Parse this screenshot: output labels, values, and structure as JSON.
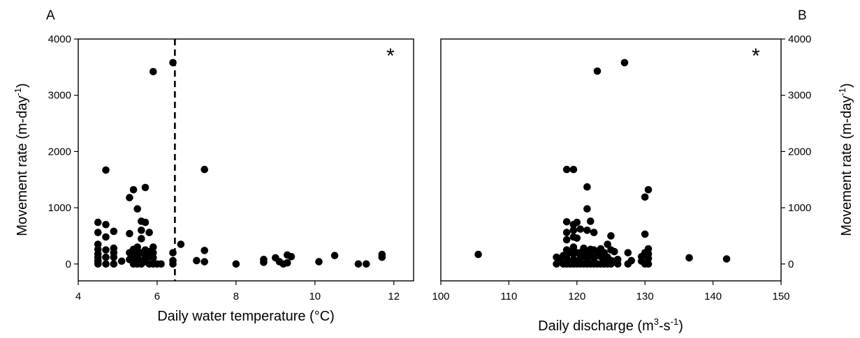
{
  "chart_data": [
    {
      "type": "scatter",
      "panel_label": "A",
      "xlabel": "Daily water temperature (°C)",
      "ylabel": "Movement rate (m-day",
      "ylabel_sup": "-1",
      "ylabel_tail": ")",
      "xlim": [
        4,
        12.5
      ],
      "ylim": [
        -300,
        4000
      ],
      "xticks": [
        4,
        6,
        8,
        10,
        12
      ],
      "yticks": [
        0,
        1000,
        2000,
        3000,
        4000
      ],
      "ytick_side": "left",
      "grid": false,
      "annotation": "*",
      "reference_line": {
        "x": 6.45,
        "style": "dashed"
      },
      "points": [
        [
          4.5,
          0
        ],
        [
          4.5,
          20
        ],
        [
          4.5,
          60
        ],
        [
          4.5,
          120
        ],
        [
          4.5,
          180
        ],
        [
          4.5,
          260
        ],
        [
          4.5,
          350
        ],
        [
          4.5,
          560
        ],
        [
          4.5,
          740
        ],
        [
          4.7,
          0
        ],
        [
          4.7,
          120
        ],
        [
          4.7,
          250
        ],
        [
          4.7,
          480
        ],
        [
          4.7,
          700
        ],
        [
          4.7,
          1670
        ],
        [
          4.9,
          0
        ],
        [
          4.9,
          120
        ],
        [
          4.9,
          200
        ],
        [
          4.9,
          280
        ],
        [
          4.9,
          580
        ],
        [
          5.1,
          50
        ],
        [
          5.3,
          80
        ],
        [
          5.3,
          200
        ],
        [
          5.3,
          540
        ],
        [
          5.3,
          1180
        ],
        [
          5.4,
          0
        ],
        [
          5.4,
          40
        ],
        [
          5.4,
          100
        ],
        [
          5.4,
          180
        ],
        [
          5.4,
          260
        ],
        [
          5.4,
          1320
        ],
        [
          5.5,
          0
        ],
        [
          5.5,
          40
        ],
        [
          5.5,
          120
        ],
        [
          5.5,
          220
        ],
        [
          5.5,
          300
        ],
        [
          5.5,
          980
        ],
        [
          5.6,
          0
        ],
        [
          5.6,
          60
        ],
        [
          5.6,
          200
        ],
        [
          5.6,
          450
        ],
        [
          5.6,
          600
        ],
        [
          5.6,
          760
        ],
        [
          5.7,
          40
        ],
        [
          5.7,
          150
        ],
        [
          5.7,
          250
        ],
        [
          5.7,
          1360
        ],
        [
          5.7,
          740
        ],
        [
          5.8,
          0
        ],
        [
          5.8,
          130
        ],
        [
          5.8,
          220
        ],
        [
          5.8,
          560
        ],
        [
          5.9,
          0
        ],
        [
          5.9,
          110
        ],
        [
          5.9,
          200
        ],
        [
          5.9,
          300
        ],
        [
          5.9,
          3420
        ],
        [
          6.0,
          0
        ],
        [
          6.1,
          0
        ],
        [
          6.4,
          0
        ],
        [
          6.4,
          60
        ],
        [
          6.4,
          200
        ],
        [
          6.4,
          3580
        ],
        [
          6.6,
          350
        ],
        [
          7.0,
          60
        ],
        [
          7.2,
          40
        ],
        [
          7.2,
          240
        ],
        [
          7.2,
          1680
        ],
        [
          8.0,
          0
        ],
        [
          8.7,
          30
        ],
        [
          8.7,
          80
        ],
        [
          9.0,
          110
        ],
        [
          9.1,
          40
        ],
        [
          9.2,
          0
        ],
        [
          9.3,
          20
        ],
        [
          9.3,
          160
        ],
        [
          9.4,
          130
        ],
        [
          10.1,
          40
        ],
        [
          10.5,
          150
        ],
        [
          11.1,
          0
        ],
        [
          11.3,
          0
        ],
        [
          11.7,
          120
        ],
        [
          11.7,
          170
        ]
      ]
    },
    {
      "type": "scatter",
      "panel_label": "B",
      "xlabel": "Daily discharge (m",
      "xlabel_sup1": "3",
      "xlabel_mid": "-s",
      "xlabel_sup2": "-1",
      "xlabel_tail": ")",
      "ylabel": "Movement rate (m-day",
      "ylabel_sup": "-1",
      "ylabel_tail": ")",
      "xlim": [
        100,
        150
      ],
      "ylim": [
        -300,
        4000
      ],
      "xticks": [
        100,
        110,
        120,
        130,
        140,
        150
      ],
      "yticks": [
        0,
        1000,
        2000,
        3000,
        4000
      ],
      "ytick_side": "right",
      "grid": false,
      "annotation": "*",
      "points": [
        [
          105.5,
          170
        ],
        [
          117.0,
          0
        ],
        [
          117.0,
          120
        ],
        [
          117.5,
          50
        ],
        [
          118.0,
          0
        ],
        [
          118.0,
          150
        ],
        [
          118.5,
          0
        ],
        [
          118.5,
          100
        ],
        [
          118.5,
          250
        ],
        [
          118.5,
          430
        ],
        [
          118.5,
          560
        ],
        [
          118.5,
          750
        ],
        [
          118.5,
          1680
        ],
        [
          119.0,
          0
        ],
        [
          119.0,
          200
        ],
        [
          119.5,
          0
        ],
        [
          119.5,
          80
        ],
        [
          119.5,
          180
        ],
        [
          119.5,
          300
        ],
        [
          119.5,
          480
        ],
        [
          119.5,
          600
        ],
        [
          119.5,
          700
        ],
        [
          119.5,
          1680
        ],
        [
          120.0,
          0
        ],
        [
          120.0,
          200
        ],
        [
          120.0,
          460
        ],
        [
          120.0,
          740
        ],
        [
          120.5,
          0
        ],
        [
          120.5,
          100
        ],
        [
          120.5,
          200
        ],
        [
          120.5,
          620
        ],
        [
          121.0,
          0
        ],
        [
          121.0,
          150
        ],
        [
          121.0,
          280
        ],
        [
          121.5,
          0
        ],
        [
          121.5,
          100
        ],
        [
          121.5,
          200
        ],
        [
          121.5,
          600
        ],
        [
          121.5,
          980
        ],
        [
          121.5,
          1370
        ],
        [
          122.0,
          0
        ],
        [
          122.0,
          150
        ],
        [
          122.0,
          260
        ],
        [
          122.0,
          760
        ],
        [
          122.5,
          0
        ],
        [
          122.5,
          100
        ],
        [
          122.5,
          250
        ],
        [
          122.5,
          560
        ],
        [
          123.0,
          0
        ],
        [
          123.0,
          200
        ],
        [
          123.0,
          3430
        ],
        [
          123.5,
          0
        ],
        [
          123.5,
          130
        ],
        [
          123.5,
          270
        ],
        [
          124.0,
          0
        ],
        [
          124.0,
          80
        ],
        [
          124.0,
          200
        ],
        [
          124.5,
          0
        ],
        [
          124.5,
          120
        ],
        [
          124.5,
          350
        ],
        [
          125.0,
          0
        ],
        [
          125.0,
          60
        ],
        [
          125.0,
          250
        ],
        [
          125.0,
          500
        ],
        [
          125.5,
          50
        ],
        [
          125.5,
          220
        ],
        [
          126.0,
          0
        ],
        [
          126.0,
          80
        ],
        [
          127.0,
          3580
        ],
        [
          127.5,
          0
        ],
        [
          127.5,
          200
        ],
        [
          128.0,
          60
        ],
        [
          129.5,
          50
        ],
        [
          129.5,
          130
        ],
        [
          130.0,
          0
        ],
        [
          130.0,
          200
        ],
        [
          130.0,
          530
        ],
        [
          130.0,
          1190
        ],
        [
          130.5,
          0
        ],
        [
          130.5,
          100
        ],
        [
          130.5,
          180
        ],
        [
          130.5,
          270
        ],
        [
          130.5,
          1320
        ],
        [
          136.5,
          110
        ],
        [
          142.0,
          90
        ]
      ]
    }
  ]
}
